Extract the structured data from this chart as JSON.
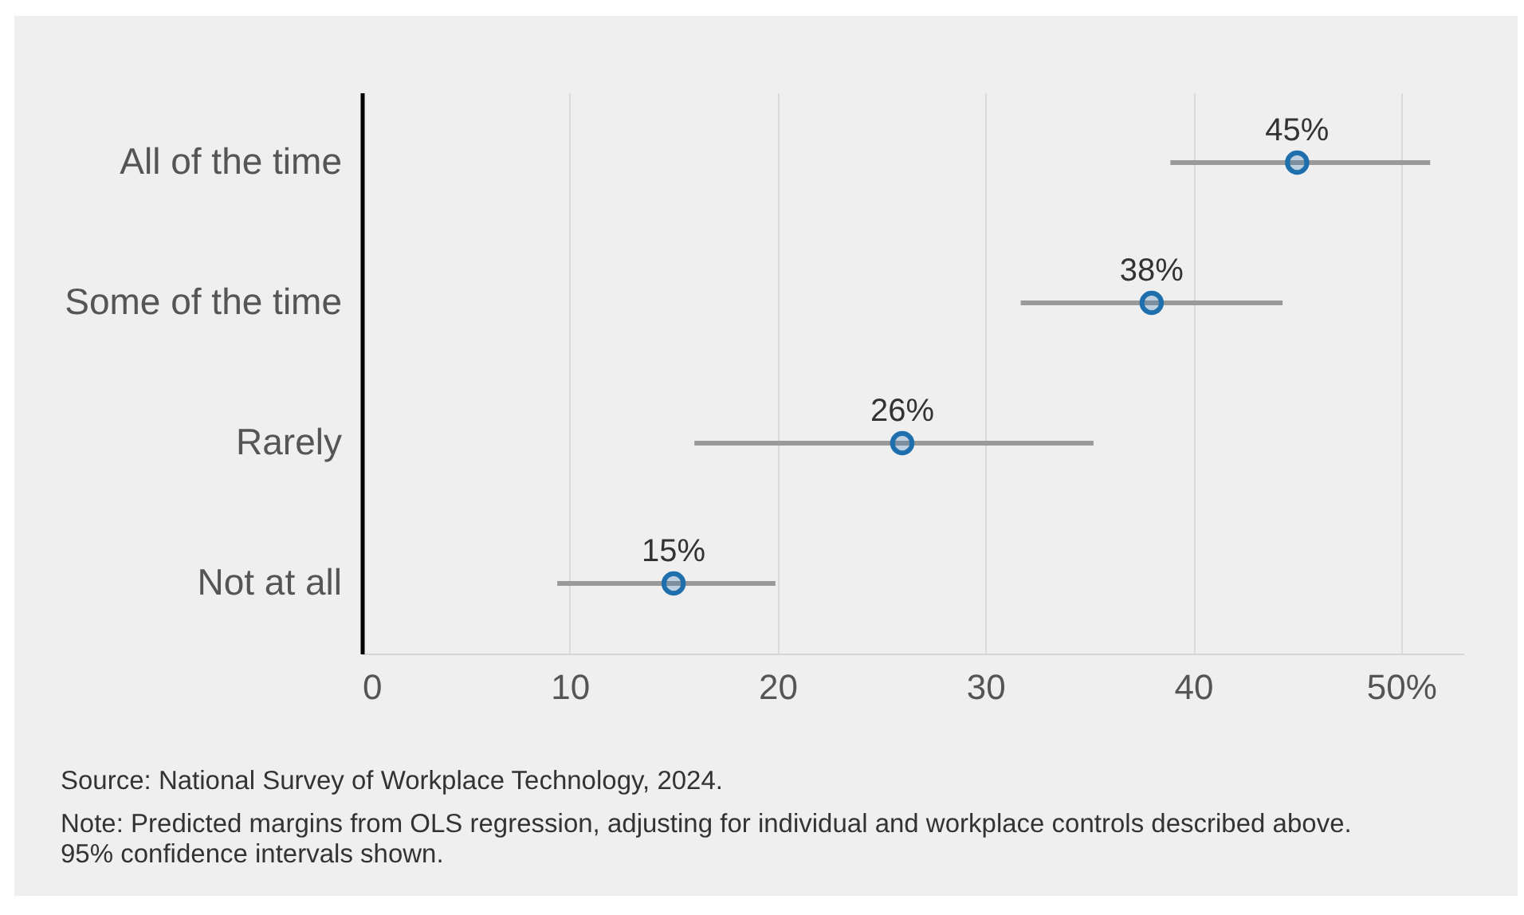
{
  "chart_data": {
    "type": "scatter",
    "orientation": "horizontal",
    "categories": [
      "All of the time",
      "Some of the time",
      "Rarely",
      "Not at all"
    ],
    "values": [
      45,
      38,
      26,
      15
    ],
    "errors": [
      [
        38.9,
        51.4
      ],
      [
        31.7,
        44.3
      ],
      [
        16,
        35.2
      ],
      [
        9.4,
        19.9
      ]
    ],
    "value_labels": [
      "45%",
      "38%",
      "26%",
      "15%"
    ],
    "color": "#1f6fad",
    "marker": "circle",
    "grid": "x",
    "xlim": [
      0,
      53
    ],
    "xticks": [
      0,
      10,
      20,
      30,
      40,
      {
        "value": 50,
        "label": "50%"
      }
    ],
    "annotations": [
      "Source: National Survey of Workplace Technology, 2024.",
      "Note: Predicted margins from OLS regression, adjusting for individual and workplace controls described above. 95% confidence intervals shown."
    ]
  }
}
